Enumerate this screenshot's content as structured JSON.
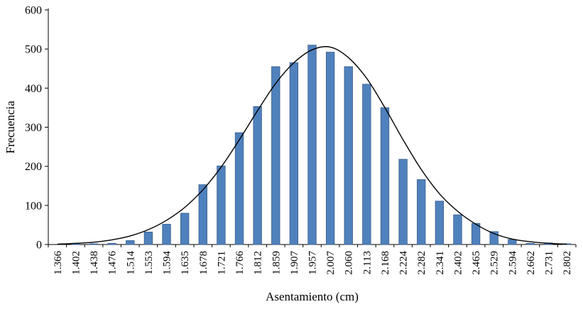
{
  "chart_data": {
    "type": "bar",
    "title": "",
    "xlabel": "Asentamiento (cm)",
    "ylabel": "Frecuencia",
    "ylim": [
      0,
      600
    ],
    "yticks": [
      0,
      100,
      200,
      300,
      400,
      500,
      600
    ],
    "grid": false,
    "legend": "none",
    "categories": [
      "1.366",
      "1.402",
      "1.438",
      "1.476",
      "1.514",
      "1.553",
      "1.594",
      "1.635",
      "1.678",
      "1.721",
      "1.766",
      "1.812",
      "1.859",
      "1.907",
      "1.957",
      "2.007",
      "2.060",
      "2.113",
      "2.168",
      "2.224",
      "2.282",
      "2.341",
      "2.402",
      "2.465",
      "2.529",
      "2.594",
      "2.662",
      "2.731",
      "2.802"
    ],
    "series": [
      {
        "name": "frecuencia-bars",
        "type": "bar",
        "color": "#4F81BD",
        "border_color": "#385D8A",
        "values": [
          0,
          3,
          2,
          3,
          10,
          32,
          52,
          80,
          153,
          201,
          286,
          353,
          455,
          465,
          510,
          492,
          455,
          410,
          350,
          218,
          166,
          111,
          76,
          54,
          33,
          13,
          3,
          4,
          2
        ]
      },
      {
        "name": "normal-curve",
        "type": "line",
        "color": "#000000",
        "values": [
          1,
          3,
          6,
          12,
          22,
          38,
          62,
          95,
          140,
          198,
          268,
          342,
          412,
          465,
          498,
          505,
          478,
          425,
          350,
          268,
          192,
          130,
          85,
          52,
          28,
          14,
          7,
          3,
          1
        ]
      }
    ]
  }
}
